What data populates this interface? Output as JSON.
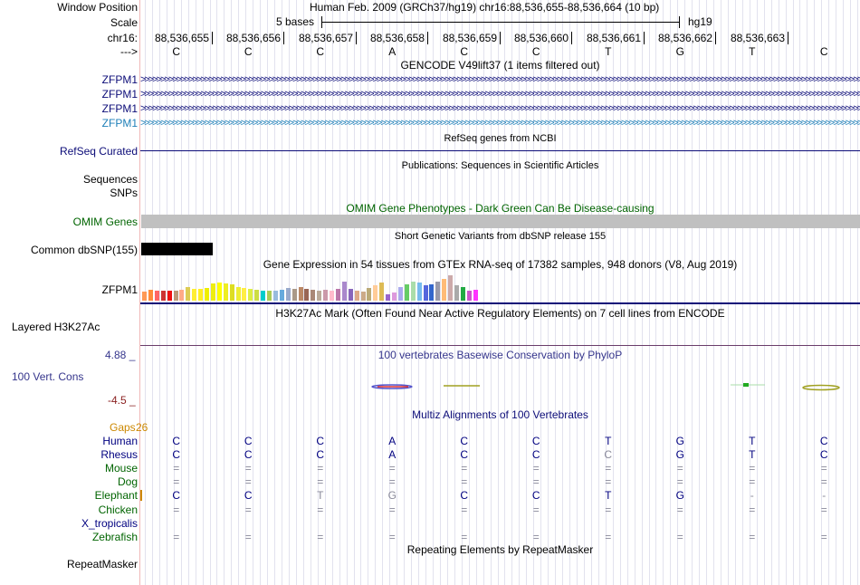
{
  "header": {
    "window_position_label": "Window Position",
    "window_position_value": "Human Feb. 2009 (GRCh37/hg19)   chr16:88,536,655-88,536,664 (10 bp)",
    "scale_label": "Scale",
    "scale_value": "5 bases",
    "scale_assembly": "hg19",
    "chrom_label": "chr16:",
    "strand_label": "--->",
    "positions": [
      "88,536,655",
      "88,536,656",
      "88,536,657",
      "88,536,658",
      "88,536,659",
      "88,536,660",
      "88,536,661",
      "88,536,662",
      "88,536,663"
    ],
    "bases": [
      "C",
      "C",
      "C",
      "A",
      "C",
      "C",
      "T",
      "G",
      "T",
      "C"
    ]
  },
  "tracks": {
    "gencode_title": "GENCODE V49lift37 (1 items filtered out)",
    "gencode_genes": [
      "ZFPM1",
      "ZFPM1",
      "ZFPM1",
      "ZFPM1"
    ],
    "refseq_label": "RefSeq Curated",
    "refseq_title": "RefSeq genes from NCBI",
    "pubs_title": "Publications: Sequences in Scientific Articles",
    "sequences_label": "Sequences",
    "snps_label": "SNPs",
    "omim_title": "OMIM Gene Phenotypes - Dark Green Can Be Disease-causing",
    "omim_label": "OMIM Genes",
    "dbsnp_title": "Short Genetic Variants from dbSNP release 155",
    "dbsnp_label": "Common dbSNP(155)",
    "gtex_title": "Gene Expression in 54 tissues from GTEx RNA-seq of 17382 samples, 948 donors (V8, Aug 2019)",
    "gtex_label": "ZFPM1",
    "gtex_values": [
      0.45,
      0.55,
      0.5,
      0.5,
      0.48,
      0.5,
      0.55,
      0.7,
      0.6,
      0.6,
      0.65,
      0.85,
      0.9,
      0.85,
      0.8,
      0.7,
      0.65,
      0.6,
      0.55,
      0.5,
      0.5,
      0.5,
      0.55,
      0.65,
      0.6,
      0.7,
      0.6,
      0.55,
      0.5,
      0.55,
      0.5,
      0.6,
      0.95,
      0.6,
      0.5,
      0.45,
      0.65,
      0.75,
      0.9,
      0.3,
      0.4,
      0.7,
      0.8,
      0.95,
      0.9,
      0.75,
      0.8,
      0.95,
      1.1,
      1.25,
      0.75,
      0.7,
      0.5,
      0.55
    ],
    "gtex_colors": [
      "#ff9955",
      "#ff8c3a",
      "#ff6666",
      "#cc3333",
      "#ee1111",
      "#bb9977",
      "#ffaa88",
      "#ddcc55",
      "#ffee33",
      "#ffee22",
      "#eeee00",
      "#eeee11",
      "#ffff00",
      "#eeee22",
      "#dddd22",
      "#eeee33",
      "#ffee44",
      "#ddee44",
      "#ccdd44",
      "#00cccc",
      "#aacc55",
      "#99bbdd",
      "#66aadd",
      "#99aacc",
      "#aa9988",
      "#bb8866",
      "#996655",
      "#aa8877",
      "#bbaa99",
      "#cc99aa",
      "#ffbbcc",
      "#bb77aa",
      "#aa88cc",
      "#8866bb",
      "#ddaa88",
      "#ccaa88",
      "#bbaa77",
      "#ffcc99",
      "#ddbb55",
      "#9966cc",
      "#dd99dd",
      "#aaaaee",
      "#66cc66",
      "#aaddaa",
      "#77bbee",
      "#5566dd",
      "#3366cc",
      "#9999aa",
      "#ffbb77",
      "#ccaaaa",
      "#aaaaaa",
      "#22aa44",
      "#cc55cc",
      "#ff33ff"
    ],
    "h3k27_title": "H3K27Ac Mark (Often Found Near Active Regulatory Elements) on 7 cell lines from ENCODE",
    "h3k27_label": "Layered H3K27Ac",
    "cons_title": "100 vertebrates Basewise Conservation by PhyloP",
    "cons_max": "4.88 _",
    "cons_label": "100 Vert. Cons",
    "cons_min": "-4.5 _",
    "gaps_label": "Gaps",
    "gaps_value": "26",
    "multiz_title": "Multiz Alignments of 100 Vertebrates",
    "species": [
      {
        "name": "Human",
        "color": "#000080",
        "bases": [
          "C",
          "C",
          "C",
          "A",
          "C",
          "C",
          "T",
          "G",
          "T",
          "C"
        ],
        "grey": []
      },
      {
        "name": "Rhesus",
        "color": "#000080",
        "bases": [
          "C",
          "C",
          "C",
          "A",
          "C",
          "C",
          "C",
          "G",
          "T",
          "C"
        ],
        "grey": [
          6
        ]
      },
      {
        "name": "Mouse",
        "color": "#006400",
        "bases": [
          "=",
          "=",
          "=",
          "=",
          "=",
          "=",
          "=",
          "=",
          "=",
          "="
        ],
        "grey": [
          0,
          1,
          2,
          3,
          4,
          5,
          6,
          7,
          8,
          9
        ]
      },
      {
        "name": "Dog",
        "color": "#006400",
        "bases": [
          "=",
          "=",
          "=",
          "=",
          "=",
          "=",
          "=",
          "=",
          "=",
          "="
        ],
        "grey": [
          0,
          1,
          2,
          3,
          4,
          5,
          6,
          7,
          8,
          9
        ]
      },
      {
        "name": "Elephant",
        "color": "#006400",
        "bases": [
          "C",
          "C",
          "T",
          "G",
          "C",
          "C",
          "T",
          "G",
          "-",
          "-"
        ],
        "grey": [
          2,
          3,
          8,
          9
        ]
      },
      {
        "name": "Chicken",
        "color": "#006400",
        "bases": [
          "=",
          "=",
          "=",
          "=",
          "=",
          "=",
          "=",
          "=",
          "=",
          "="
        ],
        "grey": [
          0,
          1,
          2,
          3,
          4,
          5,
          6,
          7,
          8,
          9
        ]
      },
      {
        "name": "X_tropicalis",
        "color": "#000080",
        "bases": [
          "",
          "",
          "",
          "",
          "",
          "",
          "",
          "",
          "",
          ""
        ],
        "grey": []
      },
      {
        "name": "Zebrafish",
        "color": "#006400",
        "bases": [
          "=",
          "=",
          "=",
          "=",
          "=",
          "=",
          "=",
          "=",
          "=",
          "="
        ],
        "grey": [
          0,
          1,
          2,
          3,
          4,
          5,
          6,
          7,
          8,
          9
        ]
      }
    ],
    "repeat_title": "Repeating Elements by RepeatMasker",
    "repeat_label": "RepeatMasker"
  },
  "colors": {
    "gencode": "#0c0c78",
    "gencode_alt": "#1e7fb8",
    "refseq": "#0c0c78",
    "omim": "#006400",
    "cons_label": "#35358c",
    "cons_min": "#8b2222",
    "gaps": "#cc8800"
  }
}
